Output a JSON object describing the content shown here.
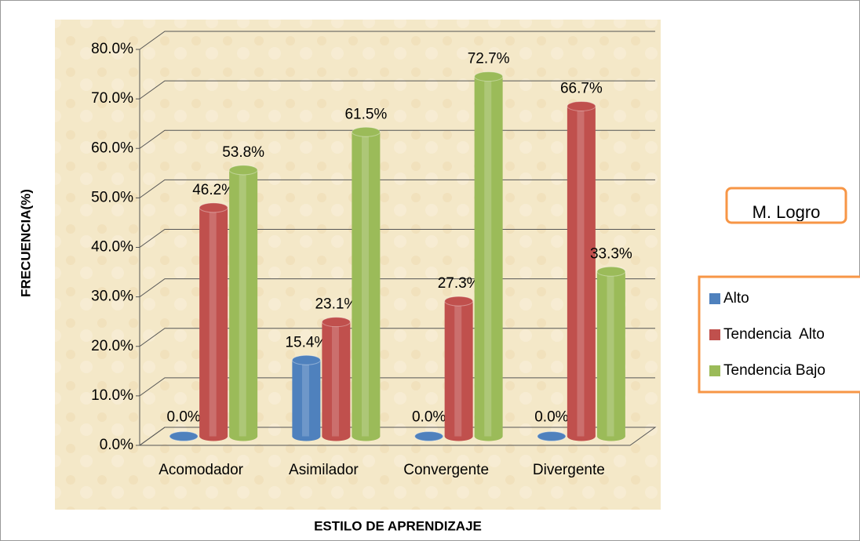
{
  "chart_data": {
    "type": "bar3d",
    "categories": [
      "Acomodador",
      "Asimilador",
      "Convergente",
      "Divergente"
    ],
    "series": [
      {
        "name": "Alto",
        "color": "#4f81bd",
        "values": [
          0,
          15.4,
          0,
          0
        ],
        "value_labels": [
          "0.0%",
          "15.4%",
          "0.0%",
          "0.0%"
        ]
      },
      {
        "name": "Tendencia  Alto",
        "color": "#c0504d",
        "values": [
          46.2,
          23.1,
          27.3,
          66.7
        ],
        "value_labels": [
          "46.2%",
          "23.1%",
          "27.3%",
          "66.7%"
        ]
      },
      {
        "name": "Tendencia Bajo",
        "color": "#9bbb59",
        "values": [
          53.8,
          61.5,
          72.7,
          33.3
        ],
        "value_labels": [
          "53.8%",
          "61.5%",
          "72.7%",
          "33.3%"
        ]
      }
    ],
    "ylim": [
      0,
      80
    ],
    "yticks": [
      {
        "value": 0,
        "label": "0.0%"
      },
      {
        "value": 10,
        "label": "10.0%"
      },
      {
        "value": 20,
        "label": "20.0%"
      },
      {
        "value": 30,
        "label": "30.0%"
      },
      {
        "value": 40,
        "label": "40.0%"
      },
      {
        "value": 50,
        "label": "50.0%"
      },
      {
        "value": 60,
        "label": "60.0%"
      },
      {
        "value": 70,
        "label": "70.0%"
      },
      {
        "value": 80,
        "label": "80.0%"
      }
    ],
    "ylabel": "FRECUENCIA(%)",
    "xlabel": "ESTILO DE APRENDIZAJE",
    "box_label": "M. Logro",
    "grid": true
  }
}
